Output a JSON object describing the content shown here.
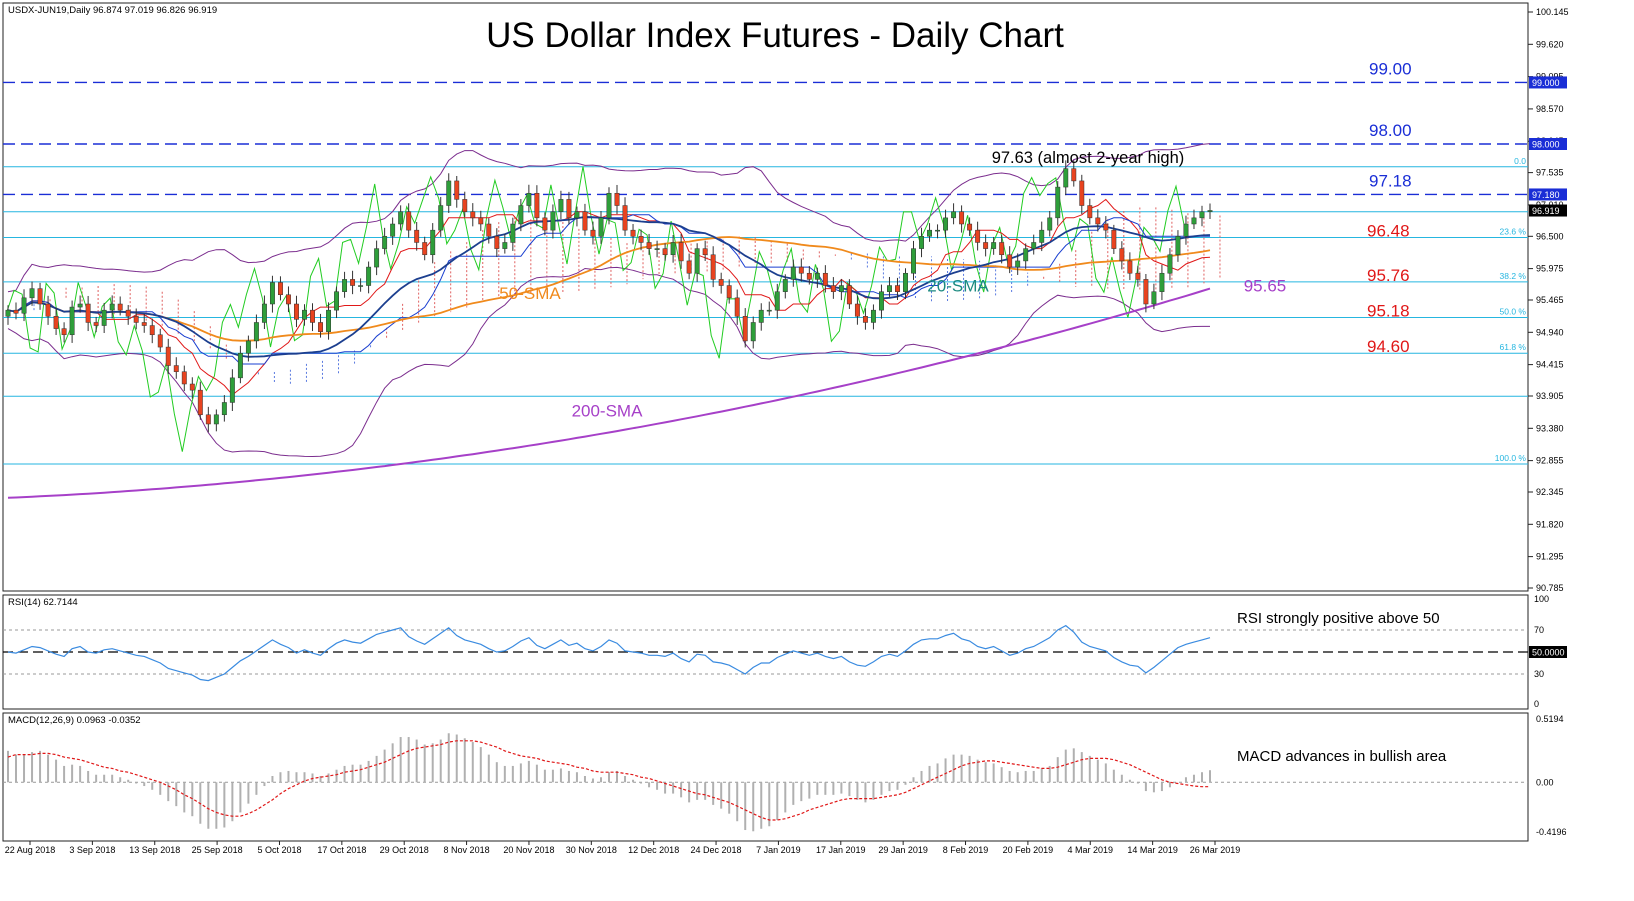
{
  "instrument_header": "USDX-JUN19,Daily  96.874 97.019 96.826 96.919",
  "title": "US Dollar Index Futures - Daily Chart",
  "colors": {
    "bull": "#2e9e3a",
    "bear": "#e8431f",
    "sma20": "#1c3f8f",
    "sma50": "#f08a1c",
    "sma200": "#a640c8",
    "bollinger": "#7b2d8e",
    "tenkan": "#e01818",
    "kijun": "#1a3fd0",
    "chikou": "#22cc22",
    "hline": "#26b6e0",
    "resistance": "#1a2ed6",
    "rsi": "#3a8be0",
    "macd_hist": "#b0b0b0",
    "macd_signal": "#e01818"
  },
  "chart_data": [
    {
      "type": "candlestick",
      "title": "US Dollar Index Futures - Daily Chart",
      "ylim": [
        90.785,
        100.145
      ],
      "y_ticks": [
        "100.145",
        "99.620",
        "99.095",
        "98.570",
        "98.045",
        "97.535",
        "97.010",
        "96.500",
        "95.975",
        "95.465",
        "94.940",
        "94.415",
        "93.905",
        "93.380",
        "92.855",
        "92.345",
        "91.820",
        "91.295",
        "90.785"
      ],
      "x_ticks": [
        "22 Aug 2018",
        "3 Sep 2018",
        "13 Sep 2018",
        "25 Sep 2018",
        "5 Oct 2018",
        "17 Oct 2018",
        "29 Oct 2018",
        "8 Nov 2018",
        "20 Nov 2018",
        "30 Nov 2018",
        "12 Dec 2018",
        "24 Dec 2018",
        "7 Jan 2019",
        "17 Jan 2019",
        "29 Jan 2019",
        "8 Feb 2019",
        "20 Feb 2019",
        "4 Mar 2019",
        "14 Mar 2019",
        "26 Mar 2019"
      ],
      "closes": [
        95.3,
        95.25,
        95.5,
        95.65,
        95.4,
        95.2,
        95.0,
        94.9,
        95.35,
        95.4,
        95.1,
        95.05,
        95.3,
        95.4,
        95.3,
        95.2,
        95.1,
        95.05,
        94.9,
        94.7,
        94.4,
        94.3,
        94.1,
        94.0,
        93.6,
        93.45,
        93.6,
        93.8,
        94.2,
        94.6,
        94.8,
        95.1,
        95.4,
        95.75,
        95.55,
        95.4,
        95.15,
        95.3,
        95.1,
        94.95,
        95.3,
        95.6,
        95.8,
        95.7,
        95.7,
        96.0,
        96.3,
        96.5,
        96.7,
        96.9,
        96.6,
        96.4,
        96.2,
        96.6,
        97.0,
        97.4,
        97.1,
        96.9,
        96.8,
        96.7,
        96.5,
        96.3,
        96.4,
        96.7,
        97.0,
        97.2,
        96.8,
        96.6,
        96.9,
        97.1,
        96.8,
        96.9,
        96.6,
        96.5,
        96.8,
        97.2,
        97.0,
        96.6,
        96.5,
        96.4,
        96.3,
        96.3,
        96.2,
        96.4,
        96.1,
        95.9,
        96.3,
        96.2,
        95.8,
        95.7,
        95.5,
        95.2,
        94.8,
        95.1,
        95.3,
        95.3,
        95.6,
        95.8,
        96.0,
        95.9,
        95.8,
        95.9,
        95.7,
        95.6,
        95.7,
        95.4,
        95.2,
        95.1,
        95.3,
        95.6,
        95.7,
        95.6,
        95.9,
        96.3,
        96.5,
        96.6,
        96.6,
        96.8,
        96.9,
        96.7,
        96.6,
        96.4,
        96.3,
        96.4,
        96.2,
        96.0,
        96.1,
        96.3,
        96.4,
        96.6,
        96.8,
        97.3,
        97.6,
        97.4,
        97.0,
        96.8,
        96.7,
        96.6,
        96.3,
        96.1,
        95.9,
        95.8,
        95.4,
        95.6,
        95.9,
        96.2,
        96.5,
        96.7,
        96.8,
        96.9,
        96.92
      ],
      "sma20_end": 96.48,
      "sma50_end": 96.25,
      "sma200_end": 95.65,
      "levels": [
        {
          "value": 99.0,
          "label": "99.00",
          "style": "dashed"
        },
        {
          "value": 98.0,
          "label": "98.00",
          "style": "dashed"
        },
        {
          "value": 97.18,
          "label": "97.18",
          "style": "dashed"
        },
        {
          "value": 96.48,
          "label": "96.48",
          "style": "fib"
        },
        {
          "value": 95.76,
          "label": "95.76",
          "style": "fib"
        },
        {
          "value": 95.18,
          "label": "95.18",
          "style": "fib"
        },
        {
          "value": 94.6,
          "label": "94.60",
          "style": "fib"
        }
      ],
      "fib_levels": [
        {
          "value": 97.63,
          "label": "0.0"
        },
        {
          "value": 96.48,
          "label": "23.6 %"
        },
        {
          "value": 95.76,
          "label": "38.2 %"
        },
        {
          "value": 95.18,
          "label": "50.0 %"
        },
        {
          "value": 94.6,
          "label": "61.8 %"
        },
        {
          "value": 92.8,
          "label": "100.0 %"
        }
      ],
      "extra_lines": [
        96.9,
        93.9
      ],
      "price_boxes": [
        {
          "value": 99.0,
          "label": "99.000"
        },
        {
          "value": 98.0,
          "label": "98.000"
        },
        {
          "value": 97.18,
          "label": "97.180"
        },
        {
          "value": 96.919,
          "label": "96.919"
        }
      ],
      "annotations": {
        "high": "97.63 (almost 2-year high)",
        "sma20": "20-SMA",
        "sma50": "50-SMA",
        "sma200": "200-SMA",
        "sma200_value": "95.65"
      }
    },
    {
      "type": "line",
      "title": "RSI(14) 62.7144",
      "ylim": [
        0,
        100
      ],
      "y_ticks": [
        "100",
        "70",
        "50.0000",
        "30",
        "0"
      ],
      "levels": [
        70,
        50,
        30
      ],
      "values": [
        50,
        49,
        52,
        55,
        54,
        51,
        48,
        46,
        53,
        55,
        50,
        49,
        52,
        53,
        51,
        49,
        47,
        46,
        43,
        40,
        35,
        33,
        31,
        29,
        25,
        24,
        27,
        30,
        36,
        42,
        46,
        51,
        56,
        61,
        57,
        54,
        49,
        52,
        49,
        47,
        53,
        58,
        61,
        59,
        58,
        62,
        66,
        68,
        70,
        72,
        64,
        60,
        57,
        62,
        67,
        72,
        65,
        61,
        59,
        57,
        53,
        50,
        51,
        55,
        60,
        63,
        56,
        53,
        57,
        61,
        56,
        58,
        53,
        51,
        55,
        61,
        58,
        51,
        50,
        49,
        47,
        47,
        46,
        49,
        44,
        41,
        48,
        47,
        41,
        40,
        38,
        34,
        30,
        36,
        40,
        40,
        45,
        48,
        51,
        49,
        47,
        49,
        46,
        44,
        46,
        41,
        38,
        37,
        41,
        46,
        48,
        46,
        51,
        57,
        61,
        62,
        62,
        65,
        67,
        62,
        60,
        55,
        53,
        55,
        51,
        47,
        49,
        53,
        55,
        59,
        63,
        70,
        74,
        68,
        59,
        55,
        53,
        51,
        45,
        41,
        38,
        37,
        31,
        36,
        42,
        48,
        54,
        57,
        59,
        61,
        63
      ],
      "annotation": "RSI strongly positive above 50"
    },
    {
      "type": "bar",
      "title": "MACD(12,26,9) 0.0963 -0.0352",
      "ylim": [
        -0.4196,
        0.5194
      ],
      "y_ticks": [
        "0.5194",
        "0.00",
        "-0.4196"
      ],
      "histogram": [
        0.25,
        0.22,
        0.22,
        0.24,
        0.25,
        0.22,
        0.18,
        0.13,
        0.14,
        0.13,
        0.09,
        0.06,
        0.06,
        0.06,
        0.04,
        0.02,
        -0.01,
        -0.03,
        -0.06,
        -0.1,
        -0.15,
        -0.19,
        -0.24,
        -0.27,
        -0.33,
        -0.37,
        -0.37,
        -0.36,
        -0.31,
        -0.24,
        -0.17,
        -0.1,
        -0.03,
        0.05,
        0.08,
        0.09,
        0.08,
        0.08,
        0.07,
        0.05,
        0.07,
        0.1,
        0.13,
        0.14,
        0.14,
        0.17,
        0.21,
        0.26,
        0.31,
        0.36,
        0.36,
        0.34,
        0.3,
        0.31,
        0.34,
        0.39,
        0.38,
        0.35,
        0.32,
        0.28,
        0.22,
        0.16,
        0.13,
        0.13,
        0.15,
        0.17,
        0.14,
        0.1,
        0.1,
        0.11,
        0.09,
        0.08,
        0.05,
        0.03,
        0.04,
        0.08,
        0.09,
        0.05,
        0.02,
        -0.01,
        -0.04,
        -0.06,
        -0.09,
        -0.09,
        -0.12,
        -0.16,
        -0.14,
        -0.14,
        -0.18,
        -0.21,
        -0.25,
        -0.31,
        -0.38,
        -0.39,
        -0.37,
        -0.35,
        -0.3,
        -0.24,
        -0.18,
        -0.15,
        -0.13,
        -0.1,
        -0.1,
        -0.1,
        -0.09,
        -0.11,
        -0.14,
        -0.16,
        -0.14,
        -0.1,
        -0.07,
        -0.06,
        -0.02,
        0.04,
        0.09,
        0.13,
        0.15,
        0.19,
        0.22,
        0.22,
        0.21,
        0.18,
        0.16,
        0.15,
        0.12,
        0.09,
        0.08,
        0.09,
        0.09,
        0.11,
        0.13,
        0.2,
        0.26,
        0.27,
        0.24,
        0.21,
        0.18,
        0.15,
        0.1,
        0.06,
        0.02,
        -0.01,
        -0.07,
        -0.08,
        -0.07,
        -0.04,
        0.0,
        0.04,
        0.06,
        0.08,
        0.096
      ],
      "signal": [
        0.2,
        0.22,
        0.22,
        0.22,
        0.23,
        0.23,
        0.22,
        0.2,
        0.19,
        0.18,
        0.16,
        0.14,
        0.12,
        0.11,
        0.09,
        0.08,
        0.06,
        0.04,
        0.02,
        -0.0,
        -0.03,
        -0.06,
        -0.1,
        -0.13,
        -0.17,
        -0.21,
        -0.24,
        -0.26,
        -0.27,
        -0.27,
        -0.25,
        -0.22,
        -0.18,
        -0.14,
        -0.09,
        -0.05,
        -0.02,
        0.01,
        0.03,
        0.04,
        0.05,
        0.06,
        0.08,
        0.09,
        0.1,
        0.12,
        0.14,
        0.16,
        0.19,
        0.22,
        0.25,
        0.27,
        0.28,
        0.29,
        0.3,
        0.32,
        0.33,
        0.33,
        0.33,
        0.32,
        0.3,
        0.28,
        0.25,
        0.23,
        0.21,
        0.2,
        0.19,
        0.17,
        0.16,
        0.15,
        0.14,
        0.12,
        0.11,
        0.09,
        0.08,
        0.08,
        0.08,
        0.07,
        0.06,
        0.04,
        0.03,
        0.01,
        -0.01,
        -0.03,
        -0.05,
        -0.07,
        -0.09,
        -0.1,
        -0.12,
        -0.14,
        -0.16,
        -0.19,
        -0.22,
        -0.25,
        -0.28,
        -0.3,
        -0.3,
        -0.29,
        -0.27,
        -0.25,
        -0.22,
        -0.2,
        -0.18,
        -0.16,
        -0.14,
        -0.13,
        -0.13,
        -0.13,
        -0.13,
        -0.12,
        -0.11,
        -0.1,
        -0.08,
        -0.05,
        -0.02,
        0.01,
        0.04,
        0.07,
        0.1,
        0.13,
        0.15,
        0.16,
        0.17,
        0.17,
        0.16,
        0.15,
        0.14,
        0.13,
        0.12,
        0.11,
        0.11,
        0.12,
        0.14,
        0.16,
        0.18,
        0.19,
        0.19,
        0.19,
        0.18,
        0.16,
        0.14,
        0.11,
        0.08,
        0.05,
        0.02,
        0.0,
        -0.01,
        -0.02,
        -0.03,
        -0.035,
        -0.035
      ],
      "annotation": "MACD advances in bullish area"
    }
  ]
}
